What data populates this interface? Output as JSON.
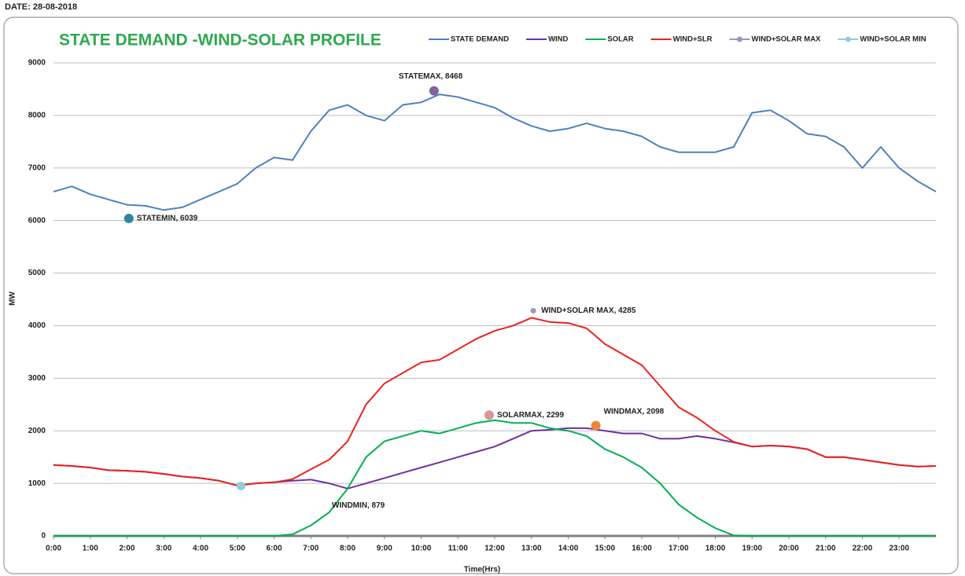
{
  "header": {
    "date": "DATE:  28-08-2018"
  },
  "chart_data": {
    "type": "line",
    "title": "STATE DEMAND -WIND-SOLAR PROFILE",
    "x_label": "Time(Hrs)",
    "y_label": "MW",
    "xlim": [
      0,
      24
    ],
    "ylim": [
      0,
      9000
    ],
    "yticks": [
      0,
      1000,
      2000,
      3000,
      4000,
      5000,
      6000,
      7000,
      8000,
      9000
    ],
    "xticks": [
      {
        "value": 0,
        "label": "0:00"
      },
      {
        "value": 1,
        "label": "1:00"
      },
      {
        "value": 2,
        "label": "2:00"
      },
      {
        "value": 3,
        "label": "3:00"
      },
      {
        "value": 4,
        "label": "4:00"
      },
      {
        "value": 5,
        "label": "5:00"
      },
      {
        "value": 6,
        "label": "6:00"
      },
      {
        "value": 7,
        "label": "7:00"
      },
      {
        "value": 8,
        "label": "8:00"
      },
      {
        "value": 9,
        "label": "9:00"
      },
      {
        "value": 10,
        "label": "10:00"
      },
      {
        "value": 11,
        "label": "11:00"
      },
      {
        "value": 12,
        "label": "12:00"
      },
      {
        "value": 13,
        "label": "13:00"
      },
      {
        "value": 14,
        "label": "14:00"
      },
      {
        "value": 15,
        "label": "15:00"
      },
      {
        "value": 16,
        "label": "16:00"
      },
      {
        "value": 17,
        "label": "17:00"
      },
      {
        "value": 18,
        "label": "18:00"
      },
      {
        "value": 19,
        "label": "19:00"
      },
      {
        "value": 20,
        "label": "20:00"
      },
      {
        "value": 21,
        "label": "21:00"
      },
      {
        "value": 22,
        "label": "22:00"
      },
      {
        "value": 23,
        "label": "23:00"
      }
    ],
    "grid": true,
    "legend": "top-right",
    "x": [
      0,
      0.5,
      1,
      1.5,
      2,
      2.5,
      3,
      3.5,
      4,
      4.5,
      5,
      5.5,
      6,
      6.5,
      7,
      7.5,
      8,
      8.5,
      9,
      9.5,
      10,
      10.5,
      11,
      11.5,
      12,
      12.5,
      13,
      13.5,
      14,
      14.5,
      15,
      15.5,
      16,
      16.5,
      17,
      17.5,
      18,
      18.5,
      19,
      19.5,
      20,
      20.5,
      21,
      21.5,
      22,
      22.5,
      23,
      23.5,
      24
    ],
    "series": [
      {
        "name": "STATE DEMAND",
        "color": "#4f81bd",
        "values": [
          6550,
          6650,
          6500,
          6400,
          6300,
          6280,
          6200,
          6250,
          6400,
          6550,
          6700,
          7000,
          7200,
          7150,
          7700,
          8100,
          8200,
          8000,
          7900,
          8200,
          8250,
          8400,
          8350,
          8250,
          8150,
          7950,
          7800,
          7700,
          7750,
          7850,
          7750,
          7700,
          7600,
          7400,
          7300,
          7300,
          7300,
          7400,
          8050,
          8100,
          7900,
          7650,
          7600,
          7400,
          7000,
          7400,
          7000,
          6750,
          6550
        ]
      },
      {
        "name": "WIND",
        "color": "#7030a0",
        "values": [
          1350,
          1330,
          1300,
          1250,
          1240,
          1220,
          1180,
          1130,
          1100,
          1050,
          960,
          1000,
          1020,
          1050,
          1070,
          1000,
          900,
          1000,
          1100,
          1200,
          1300,
          1400,
          1500,
          1600,
          1700,
          1850,
          2000,
          2020,
          2050,
          2050,
          2000,
          1950,
          1950,
          1850,
          1850,
          1900,
          1850,
          1780,
          1700,
          1720,
          1700,
          1650,
          1500,
          1500,
          1450,
          1400,
          1350,
          1320,
          1330
        ]
      },
      {
        "name": "SOLAR",
        "color": "#00b050",
        "values": [
          0,
          0,
          0,
          0,
          0,
          0,
          0,
          0,
          0,
          0,
          0,
          0,
          0,
          30,
          200,
          450,
          900,
          1500,
          1800,
          1900,
          2000,
          1950,
          2050,
          2150,
          2200,
          2150,
          2150,
          2050,
          2000,
          1900,
          1650,
          1500,
          1300,
          1000,
          600,
          350,
          150,
          10,
          0,
          0,
          0,
          0,
          0,
          0,
          0,
          0,
          0,
          0,
          0
        ]
      },
      {
        "name": "WIND+SLR",
        "color": "#e8231f",
        "values": [
          1350,
          1330,
          1300,
          1250,
          1240,
          1220,
          1180,
          1130,
          1100,
          1050,
          960,
          1000,
          1020,
          1080,
          1270,
          1450,
          1800,
          2500,
          2900,
          3100,
          3300,
          3350,
          3550,
          3750,
          3900,
          4000,
          4150,
          4070,
          4050,
          3950,
          3650,
          3450,
          3250,
          2850,
          2450,
          2250,
          2000,
          1790,
          1700,
          1720,
          1700,
          1650,
          1500,
          1500,
          1450,
          1400,
          1350,
          1320,
          1330
        ]
      },
      {
        "name": "WIND+SOLAR MAX",
        "color": "#9a96bf",
        "marker": true,
        "x": [
          13.05
        ],
        "values": [
          4285
        ]
      },
      {
        "name": "WIND+SOLAR MIN",
        "color": "#92cddc",
        "marker": true,
        "x": [
          5.1
        ],
        "values": [
          950
        ]
      }
    ],
    "annotations": [
      {
        "text": "STATEMAX, 8468",
        "x": 10.35,
        "y": 8468,
        "color": "#8064a2"
      },
      {
        "text": "STATEMIN, 6039",
        "x": 2.05,
        "y": 6039,
        "color": "#31859c"
      },
      {
        "text": "WIND+SOLAR MAX, 4285",
        "x": 13.05,
        "y": 4285,
        "color": null
      },
      {
        "text": "SOLARMAX, 2299",
        "x": 11.85,
        "y": 2299,
        "color": "#d99694"
      },
      {
        "text": "WINDMAX, 2098",
        "x": 14.75,
        "y": 2098,
        "color": "#e9883a"
      },
      {
        "text": "WINDMIN, 879",
        "x": 8.0,
        "y": 879,
        "color": null
      }
    ]
  }
}
